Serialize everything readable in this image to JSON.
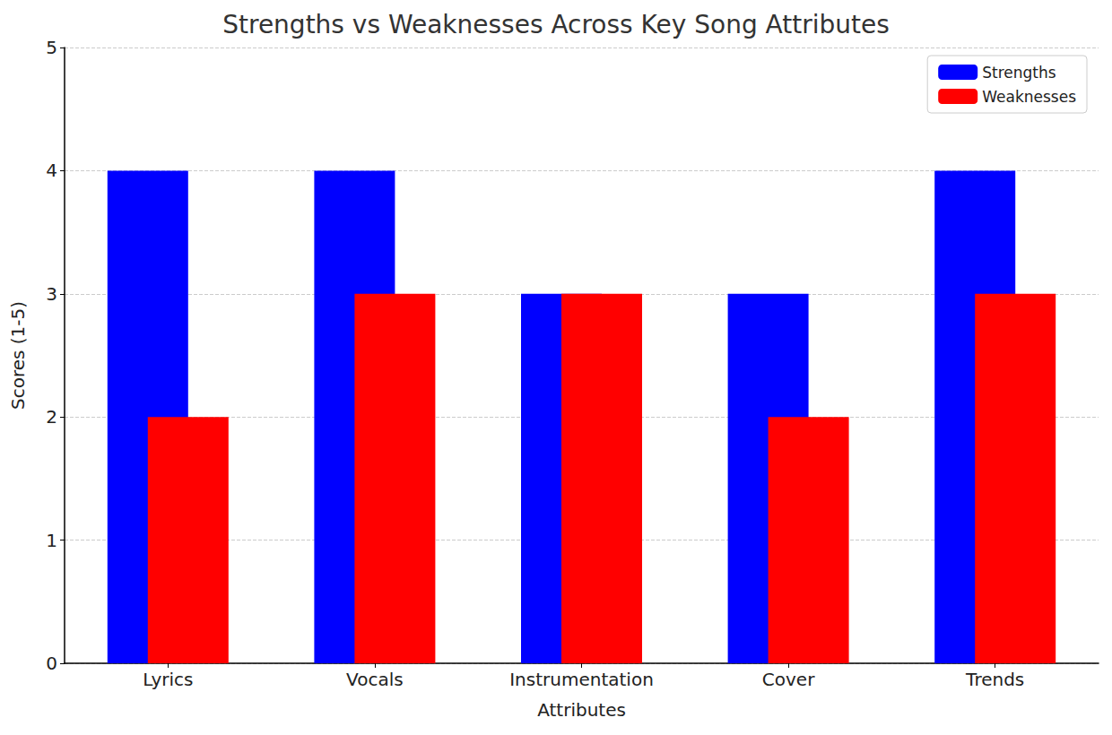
{
  "chart_data": {
    "type": "bar",
    "title": "Strengths vs Weaknesses Across Key Song Attributes",
    "x_label": "Attributes",
    "y_label": "Scores (1-5)",
    "categories": [
      "Lyrics",
      "Vocals",
      "Instrumentation",
      "Cover",
      "Trends"
    ],
    "series": [
      {
        "name": "Strengths",
        "color": "#0000ff",
        "values": [
          4,
          4,
          3,
          3,
          4
        ]
      },
      {
        "name": "Weaknesses",
        "color": "#ff0000",
        "values": [
          2,
          3,
          3,
          2,
          3
        ]
      }
    ],
    "ylim": [
      0,
      5
    ],
    "yticks": [
      0,
      1,
      2,
      3,
      4,
      5
    ],
    "grid": true,
    "legend": "upper right"
  }
}
